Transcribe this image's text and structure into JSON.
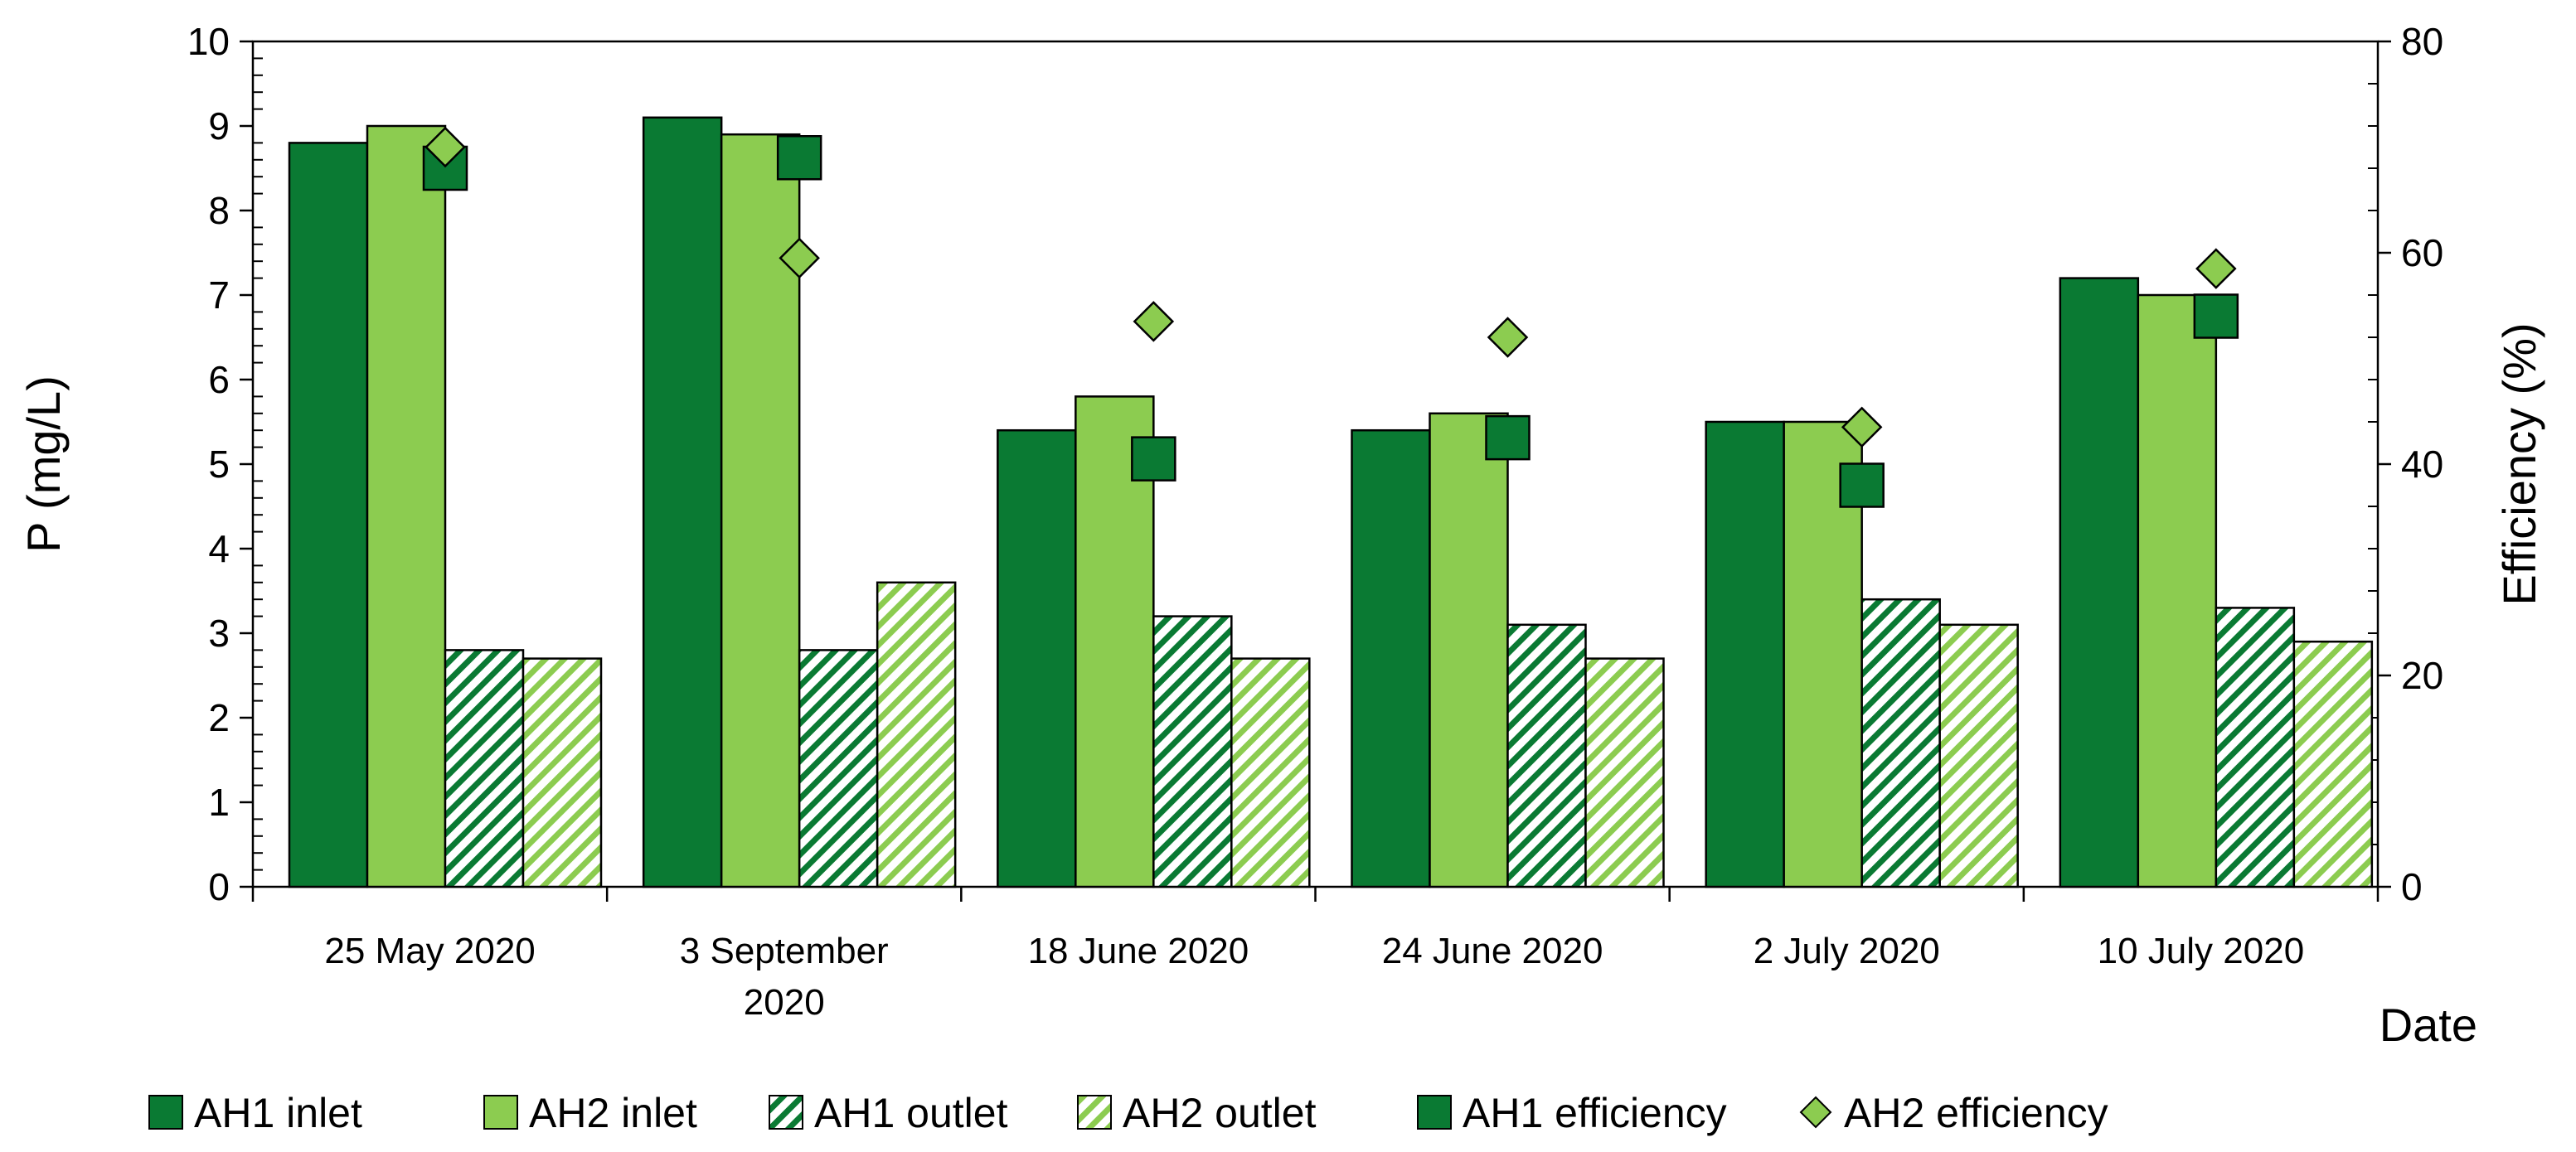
{
  "chart_data": {
    "type": "bar",
    "categories": [
      "25 May 2020",
      "3 September 2020",
      "18 June 2020",
      "24 June 2020",
      "2 July 2020",
      "10 July 2020"
    ],
    "category_lines": [
      [
        "25 May 2020"
      ],
      [
        "3 September",
        "2020"
      ],
      [
        "18 June 2020"
      ],
      [
        "24 June 2020"
      ],
      [
        "2 July 2020"
      ],
      [
        "10 July 2020"
      ]
    ],
    "series": [
      {
        "name": "AH1 inlet",
        "axis": "left",
        "kind": "bar",
        "fill": "solid",
        "color": "#0a7a33",
        "values": [
          8.8,
          9.1,
          5.4,
          5.4,
          5.5,
          7.2
        ]
      },
      {
        "name": "AH2 inlet",
        "axis": "left",
        "kind": "bar",
        "fill": "solid",
        "color": "#8ccc50",
        "values": [
          9.0,
          8.9,
          5.8,
          5.6,
          5.5,
          7.0
        ]
      },
      {
        "name": "AH1 outlet",
        "axis": "left",
        "kind": "bar",
        "fill": "hatch",
        "color": "#0a7a33",
        "values": [
          2.8,
          2.8,
          3.2,
          3.1,
          3.4,
          3.3
        ]
      },
      {
        "name": "AH2 outlet",
        "axis": "left",
        "kind": "bar",
        "fill": "hatch",
        "color": "#8ccc50",
        "values": [
          2.7,
          3.6,
          2.7,
          2.7,
          3.1,
          2.9
        ]
      },
      {
        "name": "AH1 efficiency",
        "axis": "right",
        "kind": "marker",
        "marker": "square",
        "color": "#0a7a33",
        "values": [
          68,
          69,
          40.5,
          42.5,
          38,
          54
        ]
      },
      {
        "name": "AH2 efficiency",
        "axis": "right",
        "kind": "marker",
        "marker": "diamond",
        "color": "#8ccc50",
        "values": [
          70,
          59.5,
          53.5,
          52,
          43.5,
          58.5
        ]
      }
    ],
    "ylabel": "P (mg/L)",
    "y2label": "Efficiency (%)",
    "xlabel": "Date",
    "ylim": [
      0,
      10
    ],
    "y2lim": [
      0,
      80
    ],
    "yticks": [
      "0",
      "1",
      "2",
      "3",
      "4",
      "5",
      "6",
      "7",
      "8",
      "9",
      "10"
    ],
    "y2ticks": [
      "0",
      "20",
      "40",
      "60",
      "80"
    ],
    "legend_position": "bottom",
    "grid": false
  }
}
